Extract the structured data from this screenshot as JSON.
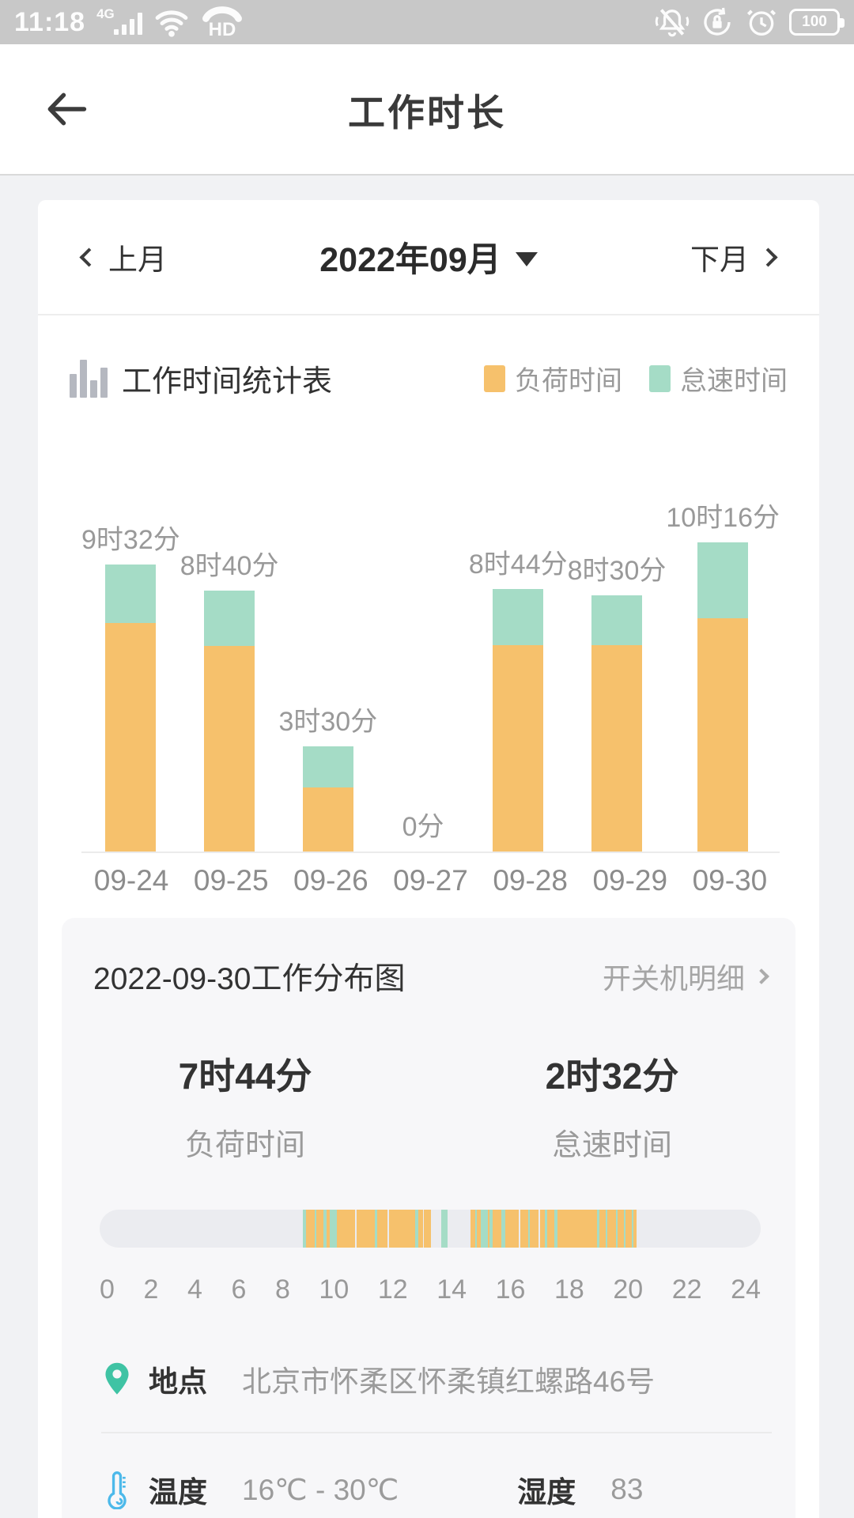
{
  "status_bar": {
    "time": "11:18",
    "network_label": "4G",
    "hd_label": "HD",
    "battery_percent": "100"
  },
  "header": {
    "title": "工作时长"
  },
  "month_nav": {
    "prev_label": "上月",
    "current_label": "2022年09月",
    "next_label": "下月"
  },
  "chart_section": {
    "title": "工作时间统计表",
    "legend": [
      {
        "label": "负荷时间",
        "color": "#f6c16c"
      },
      {
        "label": "怠速时间",
        "color": "#a5dcc6"
      }
    ]
  },
  "chart_data": {
    "type": "bar",
    "stacked": true,
    "categories": [
      "09-24",
      "09-25",
      "09-26",
      "09-27",
      "09-28",
      "09-29",
      "09-30"
    ],
    "series": [
      {
        "name": "负荷时间",
        "color": "#f6c16c",
        "values_minutes": [
          455,
          410,
          128,
          0,
          412,
          411,
          464
        ]
      },
      {
        "name": "怠速时间",
        "color": "#a5dcc6",
        "values_minutes": [
          117,
          110,
          82,
          0,
          112,
          99,
          152
        ]
      }
    ],
    "total_labels": [
      "9时32分",
      "8时40分",
      "3时30分",
      "0分",
      "8时44分",
      "8时30分",
      "10时16分"
    ],
    "unit": "minutes",
    "ylim": [
      0,
      650
    ],
    "grid": false,
    "legend_position": "top-right"
  },
  "distribution": {
    "title": "2022-09-30工作分布图",
    "detail_link_label": "开关机明细",
    "stats": [
      {
        "value": "7时44分",
        "label": "负荷时间"
      },
      {
        "value": "2时32分",
        "label": "怠速时间"
      }
    ],
    "timeline": {
      "range_hours": [
        0,
        24
      ],
      "tick_labels": [
        "0",
        "2",
        "4",
        "6",
        "8",
        "10",
        "12",
        "14",
        "16",
        "18",
        "20",
        "22",
        "24"
      ],
      "load_color": "#f6c16c",
      "idle_color": "#a5dcc6",
      "segments": [
        {
          "s": 7.38,
          "e": 7.48,
          "t": "idle"
        },
        {
          "s": 7.48,
          "e": 7.8,
          "t": "load"
        },
        {
          "s": 7.8,
          "e": 7.86,
          "t": "idle"
        },
        {
          "s": 7.86,
          "e": 8.12,
          "t": "load"
        },
        {
          "s": 8.12,
          "e": 8.24,
          "t": "idle"
        },
        {
          "s": 8.24,
          "e": 8.36,
          "t": "load"
        },
        {
          "s": 8.36,
          "e": 8.62,
          "t": "idle"
        },
        {
          "s": 8.62,
          "e": 9.28,
          "t": "load"
        },
        {
          "s": 9.32,
          "e": 9.98,
          "t": "load"
        },
        {
          "s": 9.98,
          "e": 10.08,
          "t": "idle"
        },
        {
          "s": 10.08,
          "e": 10.46,
          "t": "load"
        },
        {
          "s": 10.5,
          "e": 11.46,
          "t": "load"
        },
        {
          "s": 11.46,
          "e": 11.58,
          "t": "idle"
        },
        {
          "s": 11.58,
          "e": 11.74,
          "t": "load"
        },
        {
          "s": 11.78,
          "e": 12.02,
          "t": "load"
        },
        {
          "s": 12.4,
          "e": 12.62,
          "t": "idle"
        },
        {
          "s": 13.46,
          "e": 13.64,
          "t": "load"
        },
        {
          "s": 13.64,
          "e": 13.7,
          "t": "idle"
        },
        {
          "s": 13.7,
          "e": 13.84,
          "t": "load"
        },
        {
          "s": 13.84,
          "e": 14.1,
          "t": "idle"
        },
        {
          "s": 14.1,
          "e": 14.16,
          "t": "load"
        },
        {
          "s": 14.16,
          "e": 14.26,
          "t": "idle"
        },
        {
          "s": 14.26,
          "e": 14.58,
          "t": "load"
        },
        {
          "s": 14.58,
          "e": 14.74,
          "t": "idle"
        },
        {
          "s": 14.74,
          "e": 15.22,
          "t": "load"
        },
        {
          "s": 15.26,
          "e": 15.56,
          "t": "load"
        },
        {
          "s": 15.56,
          "e": 15.62,
          "t": "idle"
        },
        {
          "s": 15.62,
          "e": 15.94,
          "t": "load"
        },
        {
          "s": 15.98,
          "e": 16.16,
          "t": "load"
        },
        {
          "s": 16.16,
          "e": 16.24,
          "t": "idle"
        },
        {
          "s": 16.24,
          "e": 16.52,
          "t": "load"
        },
        {
          "s": 16.52,
          "e": 16.62,
          "t": "idle"
        },
        {
          "s": 16.62,
          "e": 18.06,
          "t": "load"
        },
        {
          "s": 18.06,
          "e": 18.14,
          "t": "idle"
        },
        {
          "s": 18.14,
          "e": 18.36,
          "t": "load"
        },
        {
          "s": 18.36,
          "e": 18.44,
          "t": "idle"
        },
        {
          "s": 18.44,
          "e": 18.74,
          "t": "load"
        },
        {
          "s": 18.74,
          "e": 18.8,
          "t": "idle"
        },
        {
          "s": 18.8,
          "e": 19.04,
          "t": "load"
        },
        {
          "s": 19.04,
          "e": 19.1,
          "t": "idle"
        },
        {
          "s": 19.1,
          "e": 19.32,
          "t": "load"
        },
        {
          "s": 19.32,
          "e": 19.38,
          "t": "idle"
        },
        {
          "s": 19.38,
          "e": 19.5,
          "t": "load"
        }
      ]
    },
    "location": {
      "label": "地点",
      "value": "北京市怀柔区怀柔镇红螺路46号"
    },
    "environment": {
      "temp_label": "温度",
      "temp_value": "16℃ - 30℃",
      "humidity_label": "湿度",
      "humidity_value": "83"
    }
  },
  "colors": {
    "load": "#f6c16c",
    "idle": "#a5dcc6",
    "pin_teal": "#3fc3a4",
    "thermometer_blue": "#4cb9ea"
  }
}
